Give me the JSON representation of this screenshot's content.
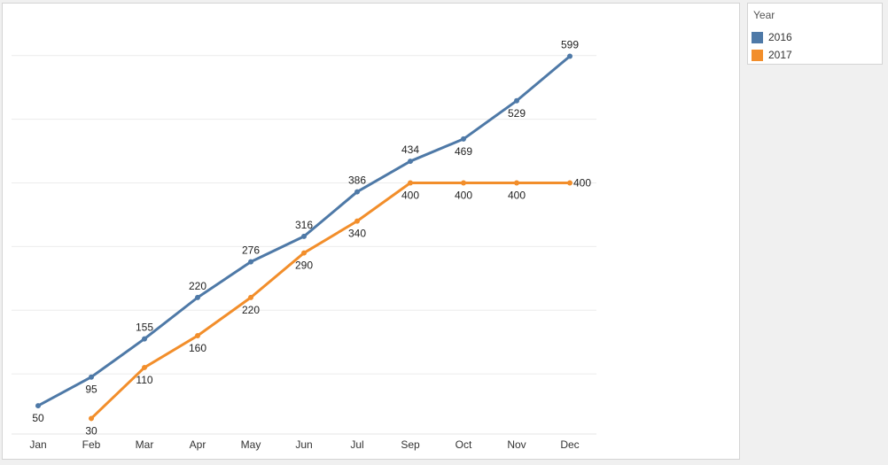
{
  "chart_data": {
    "type": "line",
    "categories": [
      "Jan",
      "Feb",
      "Mar",
      "Apr",
      "May",
      "Jun",
      "Jul",
      "Sep",
      "Oct",
      "Nov",
      "Dec"
    ],
    "ylim": [
      0,
      640
    ],
    "grid": true,
    "legend": {
      "title": "Year",
      "placement": "right-top"
    },
    "series": [
      {
        "name": "2016",
        "color": "#4e79a7",
        "values": [
          50,
          95,
          155,
          220,
          276,
          316,
          386,
          434,
          469,
          529,
          599
        ],
        "label_pos": [
          "below",
          "below",
          "above",
          "above",
          "above",
          "above",
          "above",
          "above",
          "below",
          "below",
          "above"
        ]
      },
      {
        "name": "2017",
        "color": "#f28e2b",
        "values": [
          null,
          30,
          110,
          160,
          220,
          290,
          340,
          400,
          400,
          400,
          400
        ],
        "label_pos": [
          null,
          "below",
          "below",
          "below",
          "below",
          "below",
          "below",
          "below",
          "below",
          "below",
          "right"
        ]
      }
    ]
  }
}
